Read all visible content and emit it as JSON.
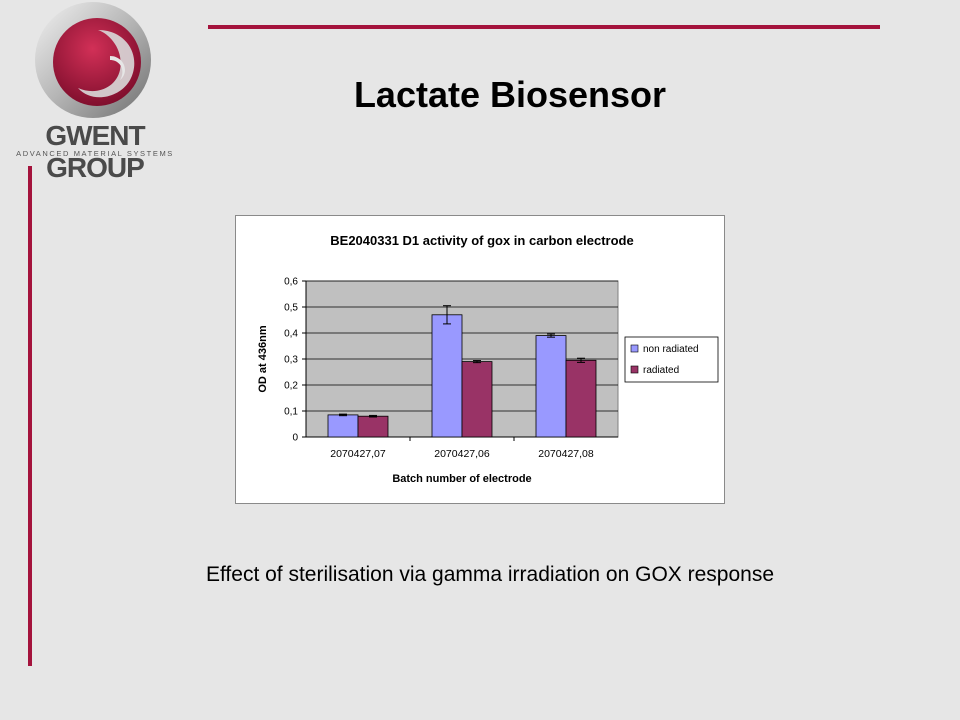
{
  "slide": {
    "title": "Lactate Biosensor",
    "caption": "Effect of sterilisation via gamma irradiation on GOX response",
    "logo": {
      "name": "GWENT GROUP",
      "tagline": "ADVANCED MATERIAL SYSTEMS"
    },
    "colors": {
      "accent": "#a4133c",
      "background": "#e6e6e6"
    }
  },
  "chart_data": {
    "type": "bar",
    "title": "BE2040331 D1 activity of gox in carbon electrode",
    "xlabel": "Batch number of electrode",
    "ylabel": "OD at 436nm",
    "categories": [
      "2070427,07",
      "2070427,06",
      "2070427,08"
    ],
    "ylim": [
      0,
      0.6
    ],
    "yticks": [
      0,
      0.1,
      0.2,
      0.3,
      0.4,
      0.5,
      0.6
    ],
    "ytick_labels": [
      "0",
      "0,1",
      "0,2",
      "0,3",
      "0,4",
      "0,5",
      "0,6"
    ],
    "grid": true,
    "legend": "right",
    "series": [
      {
        "name": "non radiated",
        "values": [
          0.085,
          0.47,
          0.39
        ],
        "errors": [
          0.003,
          0.035,
          0.006
        ],
        "color": "#9999ff"
      },
      {
        "name": "radiated",
        "values": [
          0.08,
          0.29,
          0.295
        ],
        "errors": [
          0.003,
          0.004,
          0.008
        ],
        "color": "#993366"
      }
    ],
    "plot_background": "#c0c0c0"
  }
}
